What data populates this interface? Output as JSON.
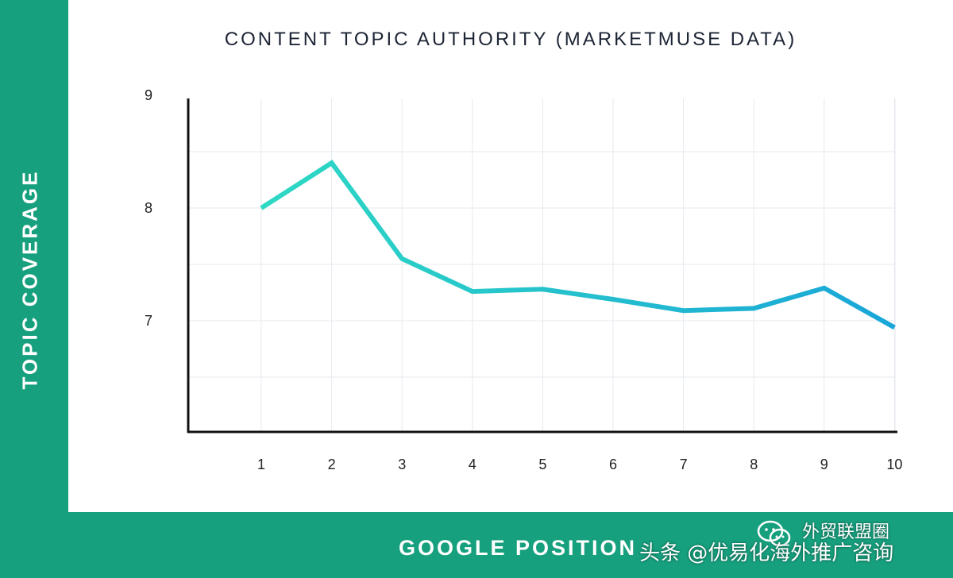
{
  "chart_data": {
    "type": "line",
    "title": "CONTENT TOPIC AUTHORITY (MARKETMUSE DATA)",
    "xlabel": "GOOGLE POSITION",
    "ylabel": "TOPIC COVERAGE",
    "x": [
      1,
      2,
      3,
      4,
      5,
      6,
      7,
      8,
      9,
      10
    ],
    "xticks": [
      "1",
      "2",
      "3",
      "4",
      "5",
      "6",
      "7",
      "8",
      "9",
      "10"
    ],
    "yticks": [
      "9",
      "8",
      "7"
    ],
    "ytick_values": [
      9,
      8,
      7
    ],
    "ylim": [
      6.0,
      9.0
    ],
    "series": [
      {
        "values": [
          8.0,
          8.4,
          7.55,
          7.26,
          7.28,
          7.19,
          7.09,
          7.11,
          7.29,
          6.94
        ],
        "color": "#1ec8c8"
      }
    ],
    "grid": true,
    "accent_color": "#17a07e"
  },
  "watermark": {
    "top_text": "外贸联盟圈",
    "bottom_text": "头条 @优易化海外推广咨询",
    "icon": "wechat-icon"
  }
}
